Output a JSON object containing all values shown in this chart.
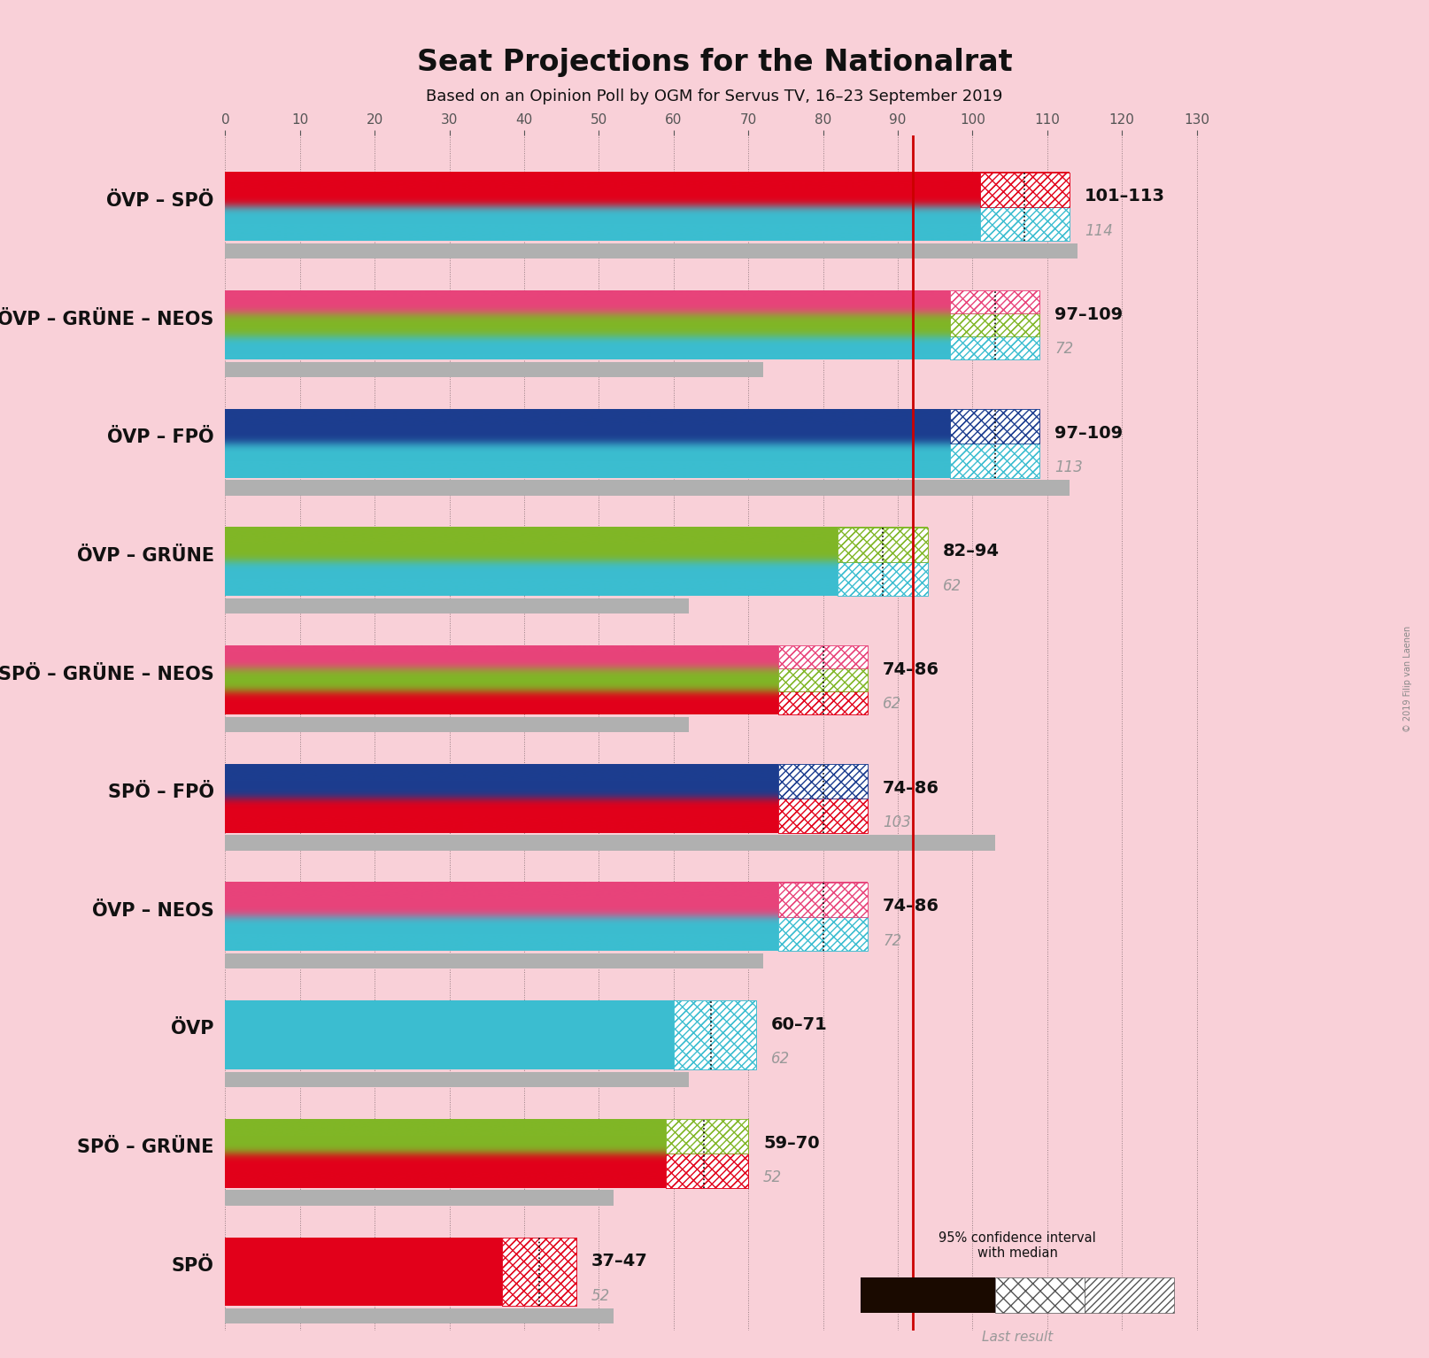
{
  "title": "Seat Projections for the Nationalrat",
  "subtitle": "Based on an Opinion Poll by OGM for Servus TV, 16–23 September 2019",
  "background_color": "#f9d0d8",
  "majority_line": 92,
  "xlim": [
    0,
    130
  ],
  "coalitions": [
    {
      "name": "ÖVP – SPÖ",
      "range_label": "101–113",
      "last_result": 114,
      "ci_low": 101,
      "ci_high": 113,
      "median": 107,
      "party_colors": [
        "#3bbdd0",
        "#e2001a"
      ]
    },
    {
      "name": "ÖVP – GRÜNE – NEOS",
      "range_label": "97–109",
      "last_result": 72,
      "ci_low": 97,
      "ci_high": 109,
      "median": 103,
      "party_colors": [
        "#3bbdd0",
        "#80b626",
        "#e8437a"
      ]
    },
    {
      "name": "ÖVP – FPÖ",
      "range_label": "97–109",
      "last_result": 113,
      "ci_low": 97,
      "ci_high": 109,
      "median": 103,
      "party_colors": [
        "#3bbdd0",
        "#1c3d8f"
      ]
    },
    {
      "name": "ÖVP – GRÜNE",
      "range_label": "82–94",
      "last_result": 62,
      "ci_low": 82,
      "ci_high": 94,
      "median": 88,
      "party_colors": [
        "#3bbdd0",
        "#80b626"
      ]
    },
    {
      "name": "SPÖ – GRÜNE – NEOS",
      "range_label": "74–86",
      "last_result": 62,
      "ci_low": 74,
      "ci_high": 86,
      "median": 80,
      "party_colors": [
        "#e2001a",
        "#80b626",
        "#e8437a"
      ]
    },
    {
      "name": "SPÖ – FPÖ",
      "range_label": "74–86",
      "last_result": 103,
      "ci_low": 74,
      "ci_high": 86,
      "median": 80,
      "party_colors": [
        "#e2001a",
        "#1c3d8f"
      ]
    },
    {
      "name": "ÖVP – NEOS",
      "range_label": "74–86",
      "last_result": 72,
      "ci_low": 74,
      "ci_high": 86,
      "median": 80,
      "party_colors": [
        "#3bbdd0",
        "#e8437a"
      ]
    },
    {
      "name": "ÖVP",
      "range_label": "60–71",
      "last_result": 62,
      "ci_low": 60,
      "ci_high": 71,
      "median": 65,
      "party_colors": [
        "#3bbdd0"
      ]
    },
    {
      "name": "SPÖ – GRÜNE",
      "range_label": "59–70",
      "last_result": 52,
      "ci_low": 59,
      "ci_high": 70,
      "median": 64,
      "party_colors": [
        "#e2001a",
        "#80b626"
      ]
    },
    {
      "name": "SPÖ",
      "range_label": "37–47",
      "last_result": 52,
      "ci_low": 37,
      "ci_high": 47,
      "median": 42,
      "party_colors": [
        "#e2001a"
      ]
    }
  ],
  "colors": {
    "majority_line": "#cc0000",
    "last_result_bar": "#b0b0b0",
    "range_label_black": "#111111",
    "last_result_gray": "#999999",
    "grid_line": "#c0c0c0",
    "tick_line": "#888888"
  },
  "axis_ticks": [
    0,
    10,
    20,
    30,
    40,
    50,
    60,
    70,
    80,
    90,
    100,
    110,
    120,
    130
  ]
}
